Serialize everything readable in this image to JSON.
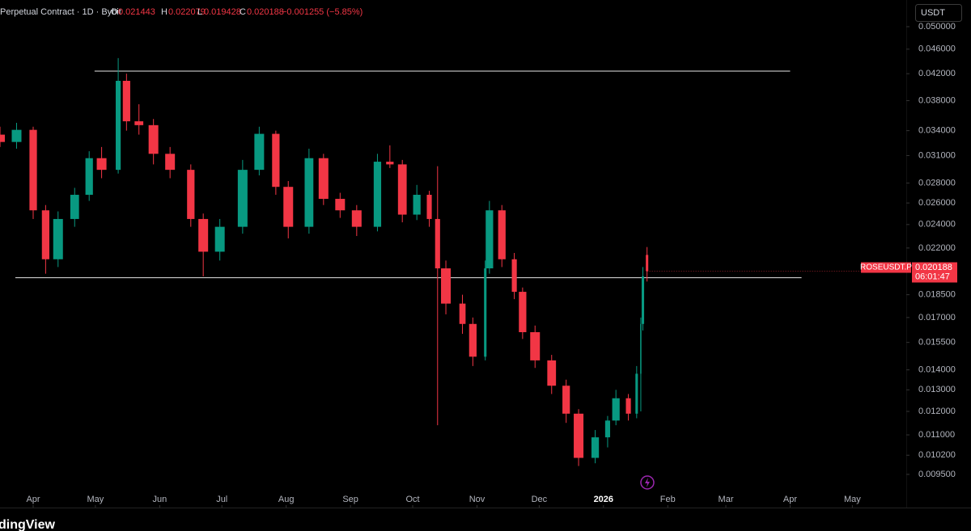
{
  "header": {
    "symbol": "Perpetual Contract · 1D · Bybit",
    "o_label": "O",
    "h_label": "H",
    "l_label": "L",
    "c_label": "C",
    "change": "−0.001255 (−5.85%)"
  },
  "currency": "USDT",
  "price_tag": {
    "symbol": "ROSEUSDT.P",
    "countdown": "06:01:47"
  },
  "logo": "dingView",
  "chart_data": {
    "type": "candlestick",
    "log_y": true,
    "up_color": "#089981",
    "down_color": "#f23645",
    "x": [
      -16,
      -8,
      0,
      6,
      12,
      20,
      27,
      33,
      41,
      45,
      51,
      58,
      66,
      76,
      82,
      90,
      101,
      109,
      117,
      123,
      133,
      140,
      148,
      156,
      166,
      172,
      178,
      185,
      191,
      195,
      199,
      207,
      212,
      218,
      220,
      226,
      232,
      236,
      242,
      250,
      257,
      263,
      271,
      277,
      281,
      287,
      291,
      293,
      294,
      296
    ],
    "open": [
      0.0335,
      0.0326,
      0.0341,
      0.0253,
      0.0211,
      0.0245,
      0.0268,
      0.0307,
      0.0294,
      0.0409,
      0.0352,
      0.0347,
      0.0312,
      0.0294,
      0.0245,
      0.0217,
      0.0238,
      0.0294,
      0.0336,
      0.0276,
      0.0238,
      0.0307,
      0.0264,
      0.0253,
      0.0238,
      0.0303,
      0.03,
      0.0249,
      0.0268,
      0.0245,
      0.0204,
      0.0179,
      0.0166,
      0.0147,
      0.0204,
      0.0253,
      0.0211,
      0.0187,
      0.0161,
      0.0145,
      0.0132,
      0.0119,
      0.0101,
      0.0109,
      0.0116,
      0.0126,
      0.0119,
      0.0138,
      0.0166,
      0.021443
    ],
    "high": [
      0.0345,
      0.035,
      0.0345,
      0.0258,
      0.0252,
      0.0275,
      0.0315,
      0.032,
      0.0445,
      0.042,
      0.0375,
      0.0355,
      0.032,
      0.03,
      0.025,
      0.0245,
      0.0305,
      0.0345,
      0.034,
      0.0282,
      0.0318,
      0.0312,
      0.027,
      0.0258,
      0.0312,
      0.0322,
      0.0305,
      0.0278,
      0.0272,
      0.0298,
      0.021,
      0.0185,
      0.017,
      0.021,
      0.0262,
      0.0258,
      0.0216,
      0.019,
      0.0165,
      0.0148,
      0.0135,
      0.0121,
      0.0112,
      0.0118,
      0.013,
      0.0128,
      0.0142,
      0.017,
      0.0205,
      0.022079
    ],
    "low": [
      0.032,
      0.0318,
      0.0245,
      0.02,
      0.0205,
      0.0238,
      0.0262,
      0.0285,
      0.029,
      0.034,
      0.0335,
      0.03,
      0.0285,
      0.0238,
      0.0198,
      0.021,
      0.0232,
      0.0288,
      0.0268,
      0.0228,
      0.0232,
      0.0258,
      0.0246,
      0.023,
      0.0234,
      0.0296,
      0.0242,
      0.0244,
      0.0238,
      0.0114,
      0.0172,
      0.016,
      0.0142,
      0.0145,
      0.02,
      0.0205,
      0.0182,
      0.0157,
      0.0141,
      0.0128,
      0.0115,
      0.0098,
      0.0099,
      0.0105,
      0.0114,
      0.0116,
      0.0117,
      0.012,
      0.0162,
      0.019428
    ],
    "close": [
      0.0326,
      0.0341,
      0.0253,
      0.0211,
      0.0245,
      0.0268,
      0.0307,
      0.0294,
      0.0409,
      0.0352,
      0.0347,
      0.0312,
      0.0294,
      0.0245,
      0.0217,
      0.0238,
      0.0294,
      0.0336,
      0.0276,
      0.0238,
      0.0307,
      0.0264,
      0.0253,
      0.0238,
      0.0303,
      0.03,
      0.0249,
      0.0268,
      0.0245,
      0.0204,
      0.0179,
      0.0166,
      0.0147,
      0.0204,
      0.0253,
      0.0211,
      0.0187,
      0.0161,
      0.0145,
      0.0132,
      0.0119,
      0.0101,
      0.0109,
      0.0116,
      0.0126,
      0.0119,
      0.0138,
      0.0166,
      0.0198,
      0.020188
    ],
    "xlim": [
      -16,
      421
    ],
    "ylim": [
      0.0084,
      0.0552
    ],
    "xticks": [
      {
        "value": 0,
        "label": "Apr"
      },
      {
        "value": 30,
        "label": "May"
      },
      {
        "value": 61,
        "label": "Jun"
      },
      {
        "value": 91,
        "label": "Jul"
      },
      {
        "value": 122,
        "label": "Aug"
      },
      {
        "value": 153,
        "label": "Sep"
      },
      {
        "value": 183,
        "label": "Oct"
      },
      {
        "value": 214,
        "label": "Nov"
      },
      {
        "value": 244,
        "label": "Dec"
      },
      {
        "value": 275,
        "label": "2026"
      },
      {
        "value": 306,
        "label": "Feb"
      },
      {
        "value": 334,
        "label": "Mar"
      },
      {
        "value": 365,
        "label": "Apr"
      },
      {
        "value": 395,
        "label": "May"
      }
    ],
    "yticks": [
      {
        "value": 0.05,
        "label": "0.050000"
      },
      {
        "value": 0.046,
        "label": "0.046000"
      },
      {
        "value": 0.042,
        "label": "0.042000"
      },
      {
        "value": 0.038,
        "label": "0.038000"
      },
      {
        "value": 0.034,
        "label": "0.034000"
      },
      {
        "value": 0.031,
        "label": "0.031000"
      },
      {
        "value": 0.028,
        "label": "0.028000"
      },
      {
        "value": 0.026,
        "label": "0.026000"
      },
      {
        "value": 0.024,
        "label": "0.024000"
      },
      {
        "value": 0.022,
        "label": "0.022000"
      },
      {
        "value": 0.0185,
        "label": "0.018500"
      },
      {
        "value": 0.017,
        "label": "0.017000"
      },
      {
        "value": 0.0155,
        "label": "0.015500"
      },
      {
        "value": 0.014,
        "label": "0.014000"
      },
      {
        "value": 0.013,
        "label": "0.013000"
      },
      {
        "value": 0.012,
        "label": "0.012000"
      },
      {
        "value": 0.011,
        "label": "0.011000"
      },
      {
        "value": 0.0102,
        "label": "0.010200"
      },
      {
        "value": 0.0095,
        "label": "0.009500"
      }
    ],
    "hlines": [
      {
        "value": 0.0424,
        "from": 29.6,
        "to": 365
      },
      {
        "value": 0.0197,
        "from": -8.6,
        "to": 370.5
      }
    ],
    "hline_color": "#e6e6e6"
  }
}
